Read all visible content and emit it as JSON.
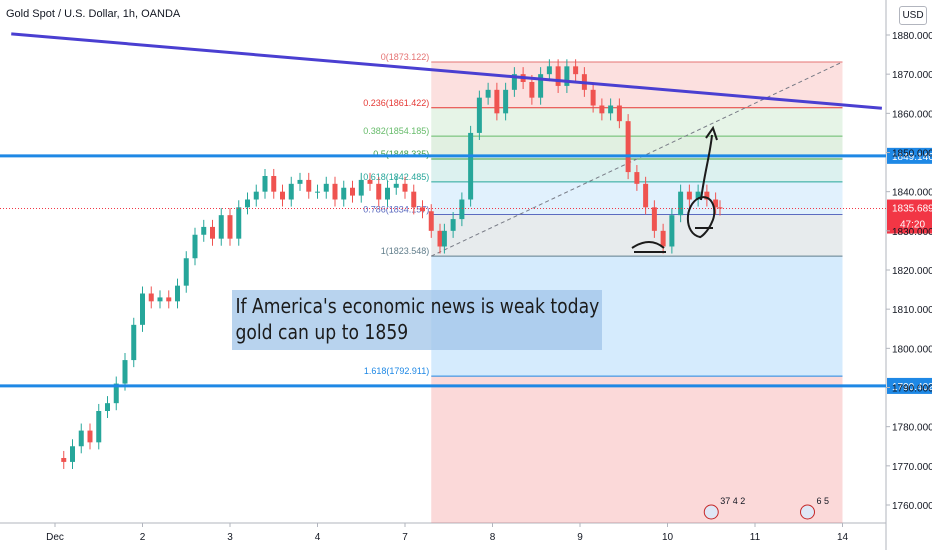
{
  "header": {
    "title": "Gold Spot / U.S. Dollar, 1h, OANDA",
    "currency_button": "USD"
  },
  "annotation": {
    "line1": "If America's economic news is weak today",
    "line2": "gold can up to 1859"
  },
  "chart_data": {
    "type": "candlestick",
    "title": "Gold Spot / U.S. Dollar, 1h, OANDA",
    "ylim": [
      1754,
      1884
    ],
    "y_ticks": [
      1760,
      1770,
      1780,
      1790,
      1800,
      1810,
      1820,
      1830,
      1840,
      1850,
      1860,
      1870,
      1880
    ],
    "y_tick_labels": [
      "1760.000",
      "1770.000",
      "1780.000",
      "1790.000",
      "1800.000",
      "1810.000",
      "1820.000",
      "1830.000",
      "1840.000",
      "1850.000",
      "1860.000",
      "1870.000",
      "1880.000"
    ],
    "x_ticks": [
      {
        "x": 0,
        "label": "Dec"
      },
      {
        "x": 1,
        "label": "2"
      },
      {
        "x": 2,
        "label": "3"
      },
      {
        "x": 3,
        "label": "4"
      },
      {
        "x": 4,
        "label": "7"
      },
      {
        "x": 5,
        "label": "8"
      },
      {
        "x": 6,
        "label": "9"
      },
      {
        "x": 7,
        "label": "10"
      },
      {
        "x": 8,
        "label": "11"
      },
      {
        "x": 9,
        "label": "14"
      }
    ],
    "candles_close": [
      [
        0.0,
        1772
      ],
      [
        0.1,
        1771
      ],
      [
        0.2,
        1775
      ],
      [
        0.3,
        1779
      ],
      [
        0.4,
        1776
      ],
      [
        0.5,
        1784
      ],
      [
        0.6,
        1786
      ],
      [
        0.7,
        1791
      ],
      [
        0.8,
        1797
      ],
      [
        0.9,
        1806
      ],
      [
        1.0,
        1814
      ],
      [
        1.1,
        1812
      ],
      [
        1.2,
        1813
      ],
      [
        1.3,
        1812
      ],
      [
        1.4,
        1816
      ],
      [
        1.5,
        1823
      ],
      [
        1.6,
        1829
      ],
      [
        1.7,
        1831
      ],
      [
        1.8,
        1828
      ],
      [
        1.9,
        1834
      ],
      [
        2.0,
        1828
      ],
      [
        2.1,
        1836
      ],
      [
        2.2,
        1838
      ],
      [
        2.3,
        1840
      ],
      [
        2.4,
        1844
      ],
      [
        2.5,
        1840
      ],
      [
        2.6,
        1838
      ],
      [
        2.7,
        1842
      ],
      [
        2.8,
        1843
      ],
      [
        2.9,
        1840
      ],
      [
        3.0,
        1840
      ],
      [
        3.1,
        1842
      ],
      [
        3.2,
        1838
      ],
      [
        3.3,
        1841
      ],
      [
        3.4,
        1839
      ],
      [
        3.5,
        1843
      ],
      [
        3.6,
        1842
      ],
      [
        3.7,
        1838
      ],
      [
        3.8,
        1841
      ],
      [
        3.9,
        1842
      ],
      [
        4.0,
        1840
      ],
      [
        4.1,
        1836
      ],
      [
        4.2,
        1835
      ],
      [
        4.3,
        1830
      ],
      [
        4.4,
        1826
      ],
      [
        4.45,
        1830
      ],
      [
        4.55,
        1833
      ],
      [
        4.65,
        1838
      ],
      [
        4.75,
        1855
      ],
      [
        4.85,
        1864
      ],
      [
        4.95,
        1866
      ],
      [
        5.05,
        1860
      ],
      [
        5.15,
        1866
      ],
      [
        5.25,
        1870
      ],
      [
        5.35,
        1868
      ],
      [
        5.45,
        1864
      ],
      [
        5.55,
        1870
      ],
      [
        5.65,
        1872
      ],
      [
        5.75,
        1867
      ],
      [
        5.85,
        1872
      ],
      [
        5.95,
        1870
      ],
      [
        6.05,
        1866
      ],
      [
        6.15,
        1862
      ],
      [
        6.25,
        1860
      ],
      [
        6.35,
        1862
      ],
      [
        6.45,
        1858
      ],
      [
        6.55,
        1845
      ],
      [
        6.65,
        1842
      ],
      [
        6.75,
        1836
      ],
      [
        6.85,
        1830
      ],
      [
        6.95,
        1826
      ],
      [
        7.05,
        1834
      ],
      [
        7.15,
        1840
      ],
      [
        7.25,
        1838
      ],
      [
        7.35,
        1840
      ],
      [
        7.45,
        1838
      ],
      [
        7.55,
        1836
      ],
      [
        7.6,
        1835.7
      ]
    ],
    "horizontal_levels": [
      {
        "value": 1849.146,
        "label": "1849.146",
        "color": "#1e88e5"
      },
      {
        "value": 1790.402,
        "label": "1790.402",
        "color": "#1e88e5"
      }
    ],
    "current_price": {
      "value": 1835.689,
      "label": "1835.689",
      "countdown": "47:20",
      "color": "#f23645"
    },
    "trendline": {
      "from": [
        -0.5,
        1880.3
      ],
      "to": [
        9.45,
        1861.3
      ],
      "color": "#4a3fd1"
    },
    "fibonacci": {
      "start_x": 4.3,
      "end_x": 9.0,
      "levels": [
        {
          "ratio": "0",
          "value": 1873.122,
          "label": "0(1873.122)",
          "color": "#e57373"
        },
        {
          "ratio": "0.236",
          "value": 1861.422,
          "label": "0.236(1861.422)",
          "color": "#e53935"
        },
        {
          "ratio": "0.382",
          "value": 1854.185,
          "label": "0.382(1854.185)",
          "color": "#66bb6a"
        },
        {
          "ratio": "0.5",
          "value": 1848.335,
          "label": "0.5(1848.335)",
          "color": "#43a047"
        },
        {
          "ratio": "0.618",
          "value": 1842.485,
          "label": "0.618(1842.485)",
          "color": "#26a69a"
        },
        {
          "ratio": "0.786",
          "value": 1834.157,
          "label": "0.786(1834.157)",
          "color": "#5c6bc0"
        },
        {
          "ratio": "1",
          "value": 1823.548,
          "label": "1(1823.548)",
          "color": "#607d8b"
        },
        {
          "ratio": "1.618",
          "value": 1792.911,
          "label": "1.618(1792.911)",
          "color": "#1e88e5"
        }
      ]
    },
    "event_markers": [
      {
        "x": 7.5,
        "text": "37 4 2"
      },
      {
        "x": 8.6,
        "text": "6 5"
      }
    ],
    "colors": {
      "up": "#26a69a",
      "down": "#ef5350"
    }
  }
}
